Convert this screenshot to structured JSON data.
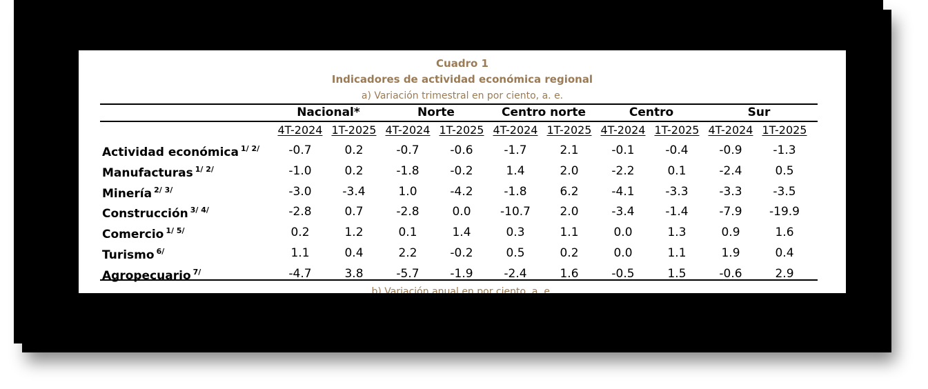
{
  "caption": {
    "number": "Cuadro 1",
    "title": "Indicadores de actividad económica regional",
    "subtitle_a": "a) Variación trimestral en por ciento, a. e.",
    "subtitle_b": "b) Variación anual en por ciento, a. e."
  },
  "regions": [
    "Nacional*",
    "Norte",
    "Centro norte",
    "Centro",
    "Sur"
  ],
  "periods": [
    "4T-2024",
    "1T-2025"
  ],
  "rows": [
    {
      "label": "Actividad económica",
      "note": "1/ 2/",
      "values": [
        "-0.7",
        "0.2",
        "-0.7",
        "-0.6",
        "-1.7",
        "2.1",
        "-0.1",
        "-0.4",
        "-0.9",
        "-1.3"
      ]
    },
    {
      "label": "Manufacturas",
      "note": "1/ 2/",
      "values": [
        "-1.0",
        "0.2",
        "-1.8",
        "-0.2",
        "1.4",
        "2.0",
        "-2.2",
        "0.1",
        "-2.4",
        "0.5"
      ]
    },
    {
      "label": "Minería",
      "note": "2/ 3/",
      "values": [
        "-3.0",
        "-3.4",
        "1.0",
        "-4.2",
        "-1.8",
        "6.2",
        "-4.1",
        "-3.3",
        "-3.3",
        "-3.5"
      ]
    },
    {
      "label": "Construcción",
      "note": "3/ 4/",
      "values": [
        "-2.8",
        "0.7",
        "-2.8",
        "0.0",
        "-10.7",
        "2.0",
        "-3.4",
        "-1.4",
        "-7.9",
        "-19.9"
      ]
    },
    {
      "label": "Comercio",
      "note": "1/ 5/",
      "values": [
        "0.2",
        "1.2",
        "0.1",
        "1.4",
        "0.3",
        "1.1",
        "0.0",
        "1.3",
        "0.9",
        "1.6"
      ]
    },
    {
      "label": "Turismo",
      "note": "6/",
      "values": [
        "1.1",
        "0.4",
        "2.2",
        "-0.2",
        "0.5",
        "0.2",
        "0.0",
        "1.1",
        "1.9",
        "0.4"
      ]
    },
    {
      "label": "Agropecuario",
      "note": "7/",
      "values": [
        "-4.7",
        "3.8",
        "-5.7",
        "-1.9",
        "-2.4",
        "1.6",
        "-0.5",
        "1.5",
        "-0.6",
        "2.9"
      ]
    }
  ],
  "colors": {
    "caption": "#9a7b55",
    "frame": "#000000",
    "text": "#000000"
  }
}
